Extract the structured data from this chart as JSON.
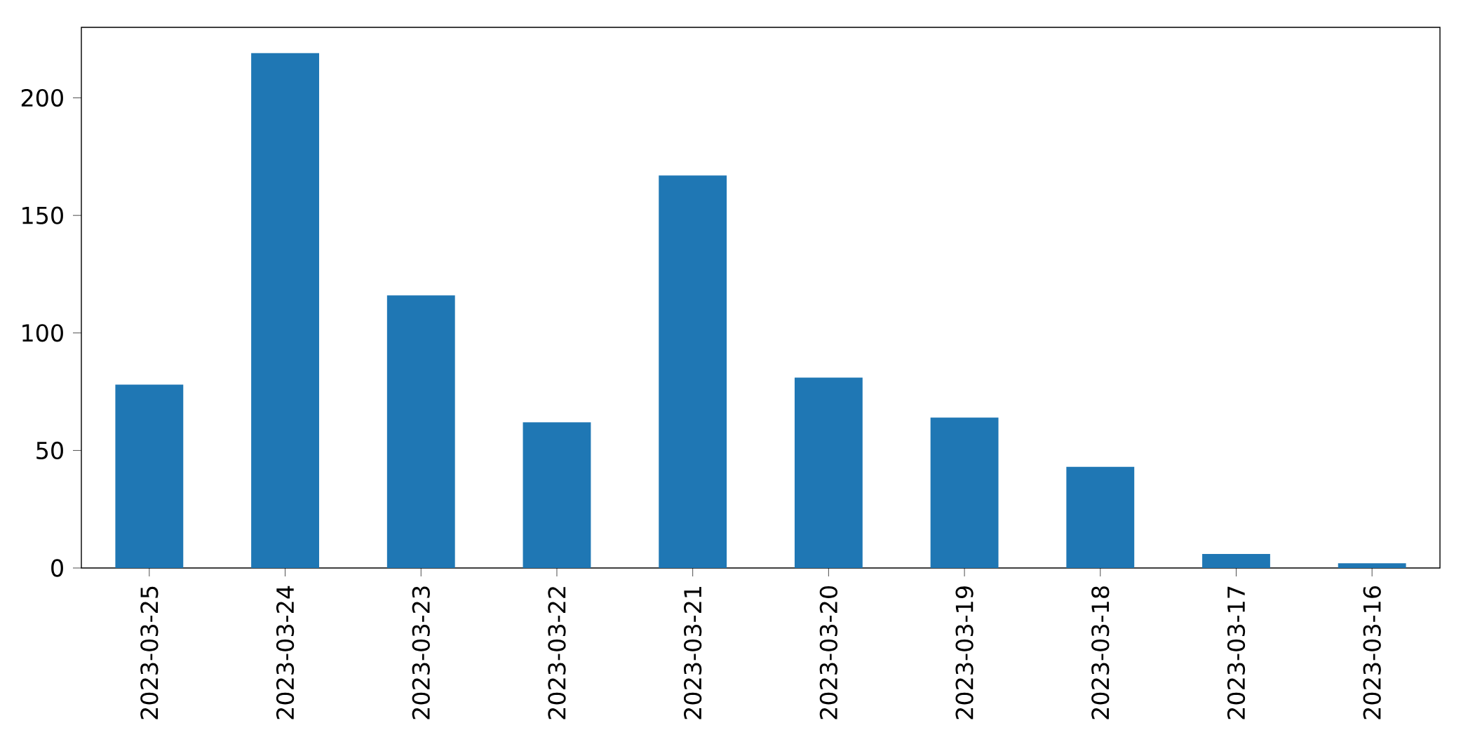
{
  "chart_data": {
    "type": "bar",
    "categories": [
      "2023-03-25",
      "2023-03-24",
      "2023-03-23",
      "2023-03-22",
      "2023-03-21",
      "2023-03-20",
      "2023-03-19",
      "2023-03-18",
      "2023-03-17",
      "2023-03-16"
    ],
    "values": [
      78,
      219,
      116,
      62,
      167,
      81,
      64,
      43,
      6,
      2
    ],
    "color": "#1f77b4",
    "ylim": [
      0,
      230
    ],
    "yticks": [
      0,
      50,
      100,
      150,
      200
    ],
    "grid": false
  }
}
